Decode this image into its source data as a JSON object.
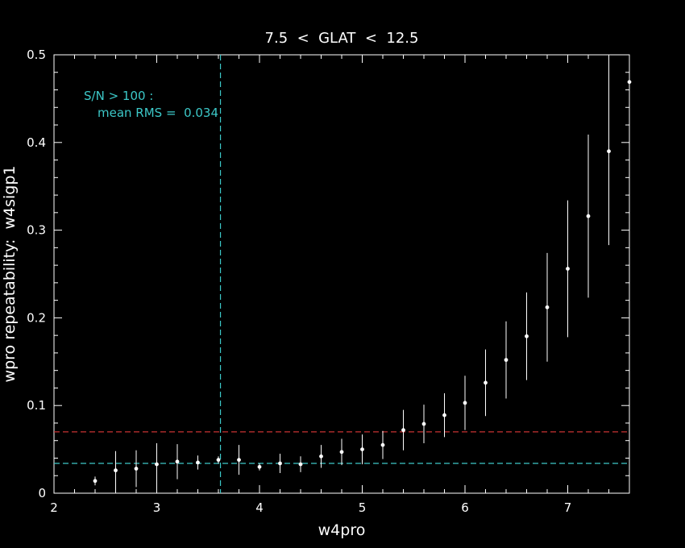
{
  "chart_data": {
    "type": "scatter",
    "title": "7.5  <  GLAT  <  12.5",
    "xlabel": "w4pro",
    "ylabel": "wpro repeatability:  w4sigp1",
    "xlim": [
      2,
      7.6
    ],
    "ylim": [
      0,
      0.5
    ],
    "xticks": [
      2,
      3,
      4,
      5,
      6,
      7
    ],
    "yticks": [
      0,
      0.1,
      0.2,
      0.3,
      0.4,
      0.5
    ],
    "ytick_labels": [
      "0",
      "0.1",
      "0.2",
      "0.3",
      "0.4",
      "0.5"
    ],
    "grid": false,
    "annotation_line1": "S/N > 100 :",
    "annotation_line2": "mean RMS =  0.034",
    "reference_lines": [
      {
        "orientation": "vertical",
        "x": 3.62,
        "color": "#3cc8c8"
      },
      {
        "orientation": "horizontal",
        "y": 0.034,
        "color": "#3cc8c8"
      },
      {
        "orientation": "horizontal",
        "y": 0.07,
        "color": "#c83232"
      }
    ],
    "series": [
      {
        "points": [
          {
            "x": 2.4,
            "y": 0.014,
            "err": 0.005
          },
          {
            "x": 2.6,
            "y": 0.026,
            "err": 0.022
          },
          {
            "x": 2.8,
            "y": 0.028,
            "err": 0.021
          },
          {
            "x": 3.0,
            "y": 0.033,
            "err": 0.024
          },
          {
            "x": 3.2,
            "y": 0.036,
            "err": 0.02
          },
          {
            "x": 3.4,
            "y": 0.035,
            "err": 0.008
          },
          {
            "x": 3.6,
            "y": 0.038,
            "err": 0.004
          },
          {
            "x": 3.8,
            "y": 0.038,
            "err": 0.017
          },
          {
            "x": 4.0,
            "y": 0.03,
            "err": 0.004
          },
          {
            "x": 4.2,
            "y": 0.034,
            "err": 0.011
          },
          {
            "x": 4.4,
            "y": 0.033,
            "err": 0.009
          },
          {
            "x": 4.6,
            "y": 0.042,
            "err": 0.013
          },
          {
            "x": 4.8,
            "y": 0.047,
            "err": 0.015
          },
          {
            "x": 5.0,
            "y": 0.05,
            "err": 0.017
          },
          {
            "x": 5.2,
            "y": 0.055,
            "err": 0.016
          },
          {
            "x": 5.4,
            "y": 0.072,
            "err": 0.023
          },
          {
            "x": 5.6,
            "y": 0.079,
            "err": 0.022
          },
          {
            "x": 5.8,
            "y": 0.089,
            "err": 0.025
          },
          {
            "x": 6.0,
            "y": 0.103,
            "err": 0.031
          },
          {
            "x": 6.2,
            "y": 0.126,
            "err": 0.038
          },
          {
            "x": 6.4,
            "y": 0.152,
            "err": 0.044
          },
          {
            "x": 6.6,
            "y": 0.179,
            "err": 0.05
          },
          {
            "x": 6.8,
            "y": 0.212,
            "err": 0.062
          },
          {
            "x": 7.0,
            "y": 0.256,
            "err": 0.078
          },
          {
            "x": 7.2,
            "y": 0.316,
            "err": 0.093
          },
          {
            "x": 7.4,
            "y": 0.39,
            "err": 0.107
          },
          {
            "x": 7.6,
            "y": 0.469,
            "err": 0.07
          }
        ]
      }
    ]
  }
}
